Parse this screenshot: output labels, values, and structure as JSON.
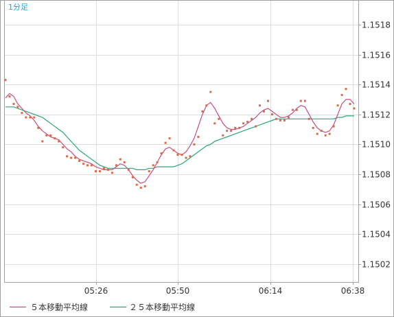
{
  "timeframe_label": "1分足",
  "chart_data": {
    "type": "line",
    "x_ticks": [
      "05:26",
      "05:50",
      "06:14",
      "06:38"
    ],
    "y_ticks": [
      1.1502,
      1.1504,
      1.1506,
      1.1508,
      1.151,
      1.1512,
      1.1514,
      1.1516,
      1.1518
    ],
    "ylim": [
      1.15008,
      1.15196
    ],
    "grid": true,
    "legend_position": "bottom-left",
    "price_points": [
      1.15143,
      1.15132,
      1.15127,
      1.15125,
      1.15121,
      1.15118,
      1.15118,
      1.15118,
      1.15111,
      1.15102,
      1.15106,
      1.15106,
      1.15104,
      1.15102,
      1.15098,
      1.15092,
      1.15091,
      1.15091,
      1.15089,
      1.15087,
      1.15086,
      1.15086,
      1.15082,
      1.15082,
      1.15084,
      1.15083,
      1.15081,
      1.15086,
      1.1509,
      1.15088,
      1.15083,
      1.15078,
      1.15073,
      1.15071,
      1.15072,
      1.15082,
      1.15086,
      1.15088,
      1.15094,
      1.15101,
      1.15104,
      1.15096,
      1.15093,
      1.15093,
      1.15091,
      1.15092,
      1.151,
      1.15105,
      1.15122,
      1.15126,
      1.15135,
      1.15114,
      1.15117,
      1.15106,
      1.15109,
      1.15109,
      1.15111,
      1.15111,
      1.15114,
      1.15115,
      1.15117,
      1.15112,
      1.15126,
      1.15122,
      1.15129,
      1.1512,
      1.15117,
      1.15116,
      1.15116,
      1.15118,
      1.15123,
      1.15123,
      1.15129,
      1.15129,
      1.15117,
      1.15111,
      1.15107,
      1.15109,
      1.15106,
      1.15107,
      1.15112,
      1.15126,
      1.15133,
      1.15137,
      1.15127,
      1.15124
    ],
    "series": [
      {
        "name": "５本移動平均線",
        "color": "#c84b80",
        "values": [
          1.15131,
          1.15134,
          1.15132,
          1.15127,
          1.15124,
          1.15121,
          1.15119,
          1.15116,
          1.15112,
          1.15109,
          1.15107,
          1.15105,
          1.15104,
          1.15103,
          1.151,
          1.15097,
          1.15095,
          1.15092,
          1.1509,
          1.15089,
          1.15088,
          1.15087,
          1.15085,
          1.15084,
          1.15083,
          1.15083,
          1.15083,
          1.15085,
          1.15087,
          1.15086,
          1.15083,
          1.15079,
          1.15076,
          1.15074,
          1.15075,
          1.15079,
          1.15083,
          1.15088,
          1.15093,
          1.15097,
          1.15098,
          1.15096,
          1.15094,
          1.15093,
          1.15095,
          1.15099,
          1.15104,
          1.15112,
          1.1512,
          1.15126,
          1.15128,
          1.15124,
          1.15119,
          1.15114,
          1.15111,
          1.1511,
          1.1511,
          1.15111,
          1.15112,
          1.15114,
          1.15116,
          1.15118,
          1.15121,
          1.15123,
          1.15124,
          1.15122,
          1.1512,
          1.15118,
          1.15118,
          1.15119,
          1.15121,
          1.15124,
          1.15126,
          1.15125,
          1.1512,
          1.15115,
          1.15111,
          1.15109,
          1.15108,
          1.15109,
          1.15113,
          1.1512,
          1.15127,
          1.1513,
          1.1513,
          1.15127
        ]
      },
      {
        "name": "２５本移動平均線",
        "color": "#2aa37a",
        "values": [
          1.15125,
          1.15125,
          1.15125,
          1.15124,
          1.15123,
          1.15122,
          1.15121,
          1.1512,
          1.15119,
          1.15118,
          1.15116,
          1.15114,
          1.15112,
          1.1511,
          1.15108,
          1.15105,
          1.15102,
          1.15099,
          1.15096,
          1.15094,
          1.15092,
          1.1509,
          1.15088,
          1.15086,
          1.15085,
          1.15084,
          1.15084,
          1.15084,
          1.15084,
          1.15084,
          1.15084,
          1.15084,
          1.15083,
          1.15083,
          1.15083,
          1.15084,
          1.15084,
          1.15085,
          1.15085,
          1.15085,
          1.15085,
          1.15085,
          1.15086,
          1.15087,
          1.15089,
          1.15091,
          1.15093,
          1.15095,
          1.15097,
          1.15099,
          1.151,
          1.15102,
          1.15103,
          1.15104,
          1.15105,
          1.15106,
          1.15107,
          1.15108,
          1.15109,
          1.1511,
          1.15111,
          1.15112,
          1.15113,
          1.15114,
          1.15115,
          1.15116,
          1.15117,
          1.15117,
          1.15117,
          1.15117,
          1.15117,
          1.15117,
          1.15117,
          1.15117,
          1.15117,
          1.15117,
          1.15117,
          1.15117,
          1.15117,
          1.15117,
          1.15117,
          1.15118,
          1.15118,
          1.15119,
          1.15119,
          1.15119
        ]
      }
    ]
  }
}
